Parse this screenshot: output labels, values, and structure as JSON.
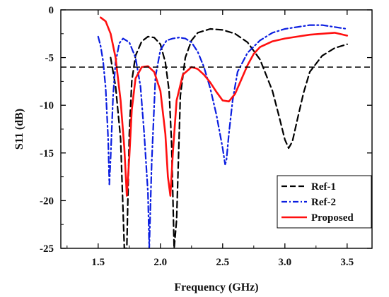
{
  "chart_data": {
    "type": "line",
    "xlabel": "Frequency (GHz)",
    "ylabel": "S11 (dB)",
    "xlim": [
      1.2,
      3.7
    ],
    "ylim": [
      -25,
      0
    ],
    "xticks": [
      1.5,
      2.0,
      2.5,
      3.0,
      3.5
    ],
    "xtick_labels": [
      "1.5",
      "2.0",
      "2.5",
      "3.0",
      "3.5"
    ],
    "yticks": [
      0,
      -5,
      -10,
      -15,
      -20,
      -25
    ],
    "ytick_labels": [
      "0",
      "-5",
      "-10",
      "-15",
      "-20",
      "-25"
    ],
    "grid": false,
    "legend_position": "bottom-right",
    "reference_line": {
      "y": -6,
      "style": "dashed",
      "color": "#000000"
    },
    "series": [
      {
        "name": "Ref-1",
        "color": "#000000",
        "style": "dashed",
        "x": [
          1.6,
          1.64,
          1.68,
          1.71,
          1.73,
          1.75,
          1.77,
          1.8,
          1.85,
          1.9,
          1.95,
          2.0,
          2.04,
          2.07,
          2.09,
          2.11,
          2.13,
          2.16,
          2.2,
          2.25,
          2.3,
          2.4,
          2.5,
          2.6,
          2.7,
          2.8,
          2.9,
          2.95,
          3.0,
          3.03,
          3.06,
          3.1,
          3.15,
          3.2,
          3.3,
          3.4,
          3.5
        ],
        "y": [
          -5.0,
          -8.0,
          -13.5,
          -25.0,
          -25.0,
          -13.0,
          -7.5,
          -4.8,
          -3.3,
          -2.8,
          -2.9,
          -3.6,
          -5.5,
          -8.5,
          -14.0,
          -25.0,
          -22.0,
          -9.0,
          -5.0,
          -3.2,
          -2.4,
          -2.0,
          -2.1,
          -2.5,
          -3.4,
          -5.2,
          -8.5,
          -11.0,
          -13.6,
          -14.5,
          -13.8,
          -11.5,
          -8.7,
          -6.5,
          -4.8,
          -4.0,
          -3.6
        ]
      },
      {
        "name": "Ref-2",
        "color": "#0b1ee0",
        "style": "dashdot",
        "x": [
          1.5,
          1.52,
          1.54,
          1.56,
          1.58,
          1.59,
          1.6,
          1.62,
          1.64,
          1.67,
          1.7,
          1.75,
          1.8,
          1.84,
          1.87,
          1.9,
          1.91,
          1.93,
          1.96,
          2.0,
          2.05,
          2.1,
          2.15,
          2.2,
          2.25,
          2.3,
          2.35,
          2.4,
          2.45,
          2.5,
          2.52,
          2.53,
          2.55,
          2.58,
          2.62,
          2.7,
          2.8,
          2.9,
          3.0,
          3.1,
          3.2,
          3.3,
          3.4,
          3.5
        ],
        "y": [
          -2.8,
          -3.8,
          -5.4,
          -8.2,
          -13.5,
          -18.3,
          -15.5,
          -9.0,
          -5.5,
          -3.5,
          -3.0,
          -3.4,
          -5.0,
          -8.0,
          -13.0,
          -19.2,
          -25.0,
          -16.0,
          -7.0,
          -4.2,
          -3.2,
          -3.0,
          -2.9,
          -3.0,
          -3.4,
          -4.4,
          -6.0,
          -8.2,
          -11.0,
          -14.5,
          -16.2,
          -15.8,
          -13.0,
          -9.5,
          -6.5,
          -4.5,
          -3.2,
          -2.4,
          -2.0,
          -1.8,
          -1.6,
          -1.6,
          -1.8,
          -2.0
        ]
      },
      {
        "name": "Proposed",
        "color": "#ff1010",
        "style": "solid",
        "x": [
          1.52,
          1.56,
          1.6,
          1.64,
          1.68,
          1.71,
          1.73,
          1.75,
          1.77,
          1.8,
          1.85,
          1.9,
          1.95,
          2.0,
          2.04,
          2.06,
          2.08,
          2.1,
          2.13,
          2.18,
          2.25,
          2.3,
          2.35,
          2.4,
          2.45,
          2.5,
          2.55,
          2.6,
          2.65,
          2.7,
          2.75,
          2.8,
          2.9,
          3.0,
          3.1,
          3.2,
          3.3,
          3.4,
          3.5
        ],
        "y": [
          -0.8,
          -1.2,
          -2.5,
          -5.0,
          -9.5,
          -14.5,
          -19.5,
          -15.5,
          -10.5,
          -7.2,
          -6.0,
          -5.9,
          -6.5,
          -8.5,
          -13.0,
          -17.5,
          -19.5,
          -15.0,
          -9.5,
          -6.8,
          -6.0,
          -6.2,
          -6.8,
          -7.6,
          -8.6,
          -9.5,
          -9.6,
          -8.8,
          -7.3,
          -5.8,
          -4.6,
          -3.9,
          -3.3,
          -3.0,
          -2.8,
          -2.6,
          -2.5,
          -2.4,
          -2.7
        ]
      }
    ]
  }
}
